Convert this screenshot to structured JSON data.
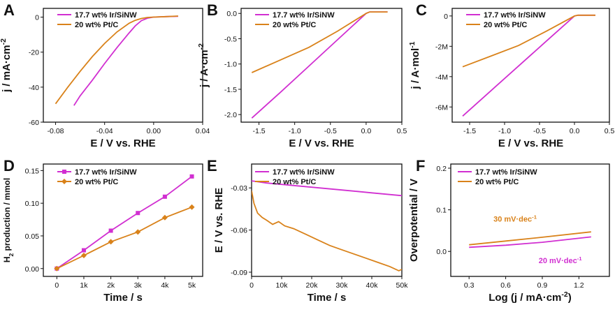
{
  "colors": {
    "ir": "#d12fd1",
    "pt": "#d9821a",
    "axis": "#111111"
  },
  "chart_data": [
    {
      "panel": "A",
      "type": "line",
      "xlabel": "E / V vs. RHE",
      "ylabel": "j / mA·cm⁻²",
      "xlim": [
        -0.09,
        0.04
      ],
      "ylim": [
        -60,
        5
      ],
      "xticks": [
        -0.08,
        -0.04,
        0.0,
        0.04
      ],
      "xticklabels": [
        "-0.08",
        "-0.04",
        "0.00",
        "0.04"
      ],
      "yticks": [
        0,
        -20,
        -40,
        -60
      ],
      "yticklabels": [
        "0",
        "-20",
        "-40",
        "-60"
      ],
      "legend": {
        "placement": "top-left",
        "entries": [
          "17.7 wt% Ir/SiNW",
          "20 wt% Pt/C"
        ]
      },
      "series": [
        {
          "name": "17.7 wt% Ir/SiNW",
          "color": "ir",
          "x": [
            -0.065,
            -0.06,
            -0.05,
            -0.04,
            -0.03,
            -0.02,
            -0.015,
            -0.01,
            -0.005,
            0,
            0.01,
            0.02
          ],
          "y": [
            -50.5,
            -45,
            -36,
            -26.5,
            -17.5,
            -9,
            -5,
            -2,
            -0.6,
            0,
            0.3,
            0.5
          ]
        },
        {
          "name": "20 wt% Pt/C",
          "color": "pt",
          "x": [
            -0.08,
            -0.07,
            -0.06,
            -0.05,
            -0.04,
            -0.03,
            -0.02,
            -0.015,
            -0.01,
            -0.005,
            0,
            0.01,
            0.02
          ],
          "y": [
            -49.5,
            -40,
            -31,
            -22.5,
            -15,
            -8.5,
            -3.5,
            -1.8,
            -0.8,
            -0.2,
            0,
            0.3,
            0.6
          ]
        }
      ]
    },
    {
      "panel": "B",
      "type": "line",
      "xlabel": "E / V vs. RHE",
      "ylabel": "j / A·cm⁻²",
      "xlim": [
        -1.75,
        0.5
      ],
      "ylim": [
        -2.15,
        0.1
      ],
      "xticks": [
        -1.5,
        -1.0,
        -0.5,
        0.0,
        0.5
      ],
      "xticklabels": [
        "-1.5",
        "-1.0",
        "-0.5",
        "0.0",
        "0.5"
      ],
      "yticks": [
        0.0,
        -0.5,
        -1.0,
        -1.5,
        -2.0
      ],
      "yticklabels": [
        "0.0",
        "-0.5",
        "-1.0",
        "-1.5",
        "-2.0"
      ],
      "legend": {
        "placement": "top-right",
        "entries": [
          "17.7 wt% Ir/SiNW",
          "20 wt% Pt/C"
        ]
      },
      "series": [
        {
          "name": "17.7 wt% Ir/SiNW",
          "color": "ir",
          "x": [
            -1.6,
            -1.2,
            -0.8,
            -0.4,
            0.0,
            0.05,
            0.3
          ],
          "y": [
            -2.07,
            -1.56,
            -1.04,
            -0.52,
            0.0,
            0.03,
            0.03
          ]
        },
        {
          "name": "20 wt% Pt/C",
          "color": "pt",
          "x": [
            -1.6,
            -1.2,
            -0.8,
            -0.4,
            0.0,
            0.05,
            0.3
          ],
          "y": [
            -1.17,
            -0.92,
            -0.67,
            -0.35,
            0.0,
            0.03,
            0.03
          ]
        }
      ]
    },
    {
      "panel": "C",
      "type": "line",
      "xlabel": "E / V vs. RHE",
      "ylabel": "j / A·mol⁻¹",
      "xlim": [
        -1.75,
        0.5
      ],
      "ylim": [
        -7000000,
        500000
      ],
      "xticks": [
        -1.5,
        -1.0,
        -0.5,
        0.0,
        0.5
      ],
      "xticklabels": [
        "-1.5",
        "-1.0",
        "-0.5",
        "0.0",
        "0.5"
      ],
      "yticks": [
        0,
        -2000000,
        -4000000,
        -6000000
      ],
      "yticklabels": [
        "0",
        "-2M",
        "-4M",
        "-6M"
      ],
      "legend": {
        "placement": "top-right",
        "entries": [
          "17.7 wt% Ir/SiNW",
          "20 wt% Pt/C"
        ]
      },
      "series": [
        {
          "name": "17.7 wt% Ir/SiNW",
          "color": "ir",
          "x": [
            -1.6,
            -1.2,
            -0.8,
            -0.4,
            0.0,
            0.05,
            0.3
          ],
          "y": [
            -6600000,
            -4950000,
            -3300000,
            -1650000,
            0,
            50000,
            50000
          ]
        },
        {
          "name": "20 wt% Pt/C",
          "color": "pt",
          "x": [
            -1.6,
            -1.2,
            -0.8,
            -0.4,
            0.0,
            0.05,
            0.3
          ],
          "y": [
            -3350000,
            -2650000,
            -1950000,
            -1000000,
            0,
            50000,
            50000
          ]
        }
      ]
    },
    {
      "panel": "D",
      "type": "line",
      "xlabel": "Time / s",
      "ylabel": "H₂ production / mmol",
      "xlim": [
        -500,
        5400
      ],
      "ylim": [
        -0.012,
        0.16
      ],
      "xticks": [
        0,
        1000,
        2000,
        3000,
        4000,
        5000
      ],
      "xticklabels": [
        "0",
        "1k",
        "2k",
        "3k",
        "4k",
        "5k"
      ],
      "yticks": [
        0.0,
        0.05,
        0.1,
        0.15
      ],
      "yticklabels": [
        "0.00",
        "0.05",
        "0.10",
        "0.15"
      ],
      "legend": {
        "placement": "top-left",
        "entries": [
          "17.7 wt% Ir/SiNW",
          "20 wt% Pt/C"
        ]
      },
      "series": [
        {
          "name": "17.7 wt% Ir/SiNW",
          "color": "ir",
          "marker": "square",
          "x": [
            0,
            1000,
            2000,
            3000,
            4000,
            5000
          ],
          "y": [
            0.0,
            0.028,
            0.058,
            0.085,
            0.11,
            0.141
          ]
        },
        {
          "name": "20 wt% Pt/C",
          "color": "pt",
          "marker": "diamond",
          "x": [
            0,
            1000,
            2000,
            3000,
            4000,
            5000
          ],
          "y": [
            0.0,
            0.02,
            0.041,
            0.056,
            0.078,
            0.094
          ]
        }
      ]
    },
    {
      "panel": "E",
      "type": "line",
      "xlabel": "Time / s",
      "ylabel": "E / V vs. RHE",
      "xlim": [
        0,
        50000
      ],
      "ylim": [
        -0.093,
        -0.013
      ],
      "xticks": [
        0,
        10000,
        20000,
        30000,
        40000,
        50000
      ],
      "xticklabels": [
        "0",
        "10k",
        "20k",
        "30k",
        "40k",
        "50k"
      ],
      "yticks": [
        -0.03,
        -0.06,
        -0.09
      ],
      "yticklabels": [
        "-0.03",
        "-0.06",
        "-0.09"
      ],
      "legend": {
        "placement": "top-right",
        "entries": [
          "17.7 wt% Ir/SiNW",
          "20 wt% Pt/C"
        ]
      },
      "series": [
        {
          "name": "17.7 wt% Ir/SiNW",
          "color": "ir",
          "x": [
            0,
            5000,
            10000,
            15000,
            20000,
            25000,
            30000,
            35000,
            40000,
            45000,
            50000
          ],
          "y": [
            -0.025,
            -0.0265,
            -0.0275,
            -0.0285,
            -0.0295,
            -0.0305,
            -0.0315,
            -0.0325,
            -0.0335,
            -0.0345,
            -0.0355
          ]
        },
        {
          "name": "20 wt% Pt/C",
          "color": "pt",
          "x": [
            0,
            800,
            2000,
            3500,
            5000,
            7000,
            9000,
            11000,
            14000,
            18000,
            22000,
            26000,
            30000,
            34000,
            38000,
            42000,
            46000,
            49000,
            50000
          ],
          "y": [
            -0.032,
            -0.041,
            -0.048,
            -0.051,
            -0.053,
            -0.056,
            -0.054,
            -0.057,
            -0.059,
            -0.063,
            -0.067,
            -0.071,
            -0.074,
            -0.077,
            -0.08,
            -0.083,
            -0.086,
            -0.089,
            -0.088
          ]
        }
      ]
    },
    {
      "panel": "F",
      "type": "line",
      "xlabel": "Log (j / mA·cm⁻²)",
      "ylabel": "Overpotential / V",
      "xlim": [
        0.15,
        1.45
      ],
      "ylim": [
        -0.06,
        0.21
      ],
      "xticks": [
        0.3,
        0.6,
        0.9,
        1.2
      ],
      "xticklabels": [
        "0.3",
        "0.6",
        "0.9",
        "1.2"
      ],
      "yticks": [
        0.0,
        0.1,
        0.2
      ],
      "yticklabels": [
        "0.0",
        "0.1",
        "0.2"
      ],
      "legend": {
        "placement": "top-right",
        "entries": [
          "17.7 wt% Ir/SiNW",
          "20 wt% Pt/C"
        ]
      },
      "annotations": [
        {
          "text": "30 mV·dec⁻¹",
          "color": "pt",
          "x": 0.5,
          "y": 0.072
        },
        {
          "text": "20 mV·dec⁻¹",
          "color": "ir",
          "x": 0.87,
          "y": -0.028
        }
      ],
      "series": [
        {
          "name": "17.7 wt% Ir/SiNW",
          "color": "ir",
          "x": [
            0.3,
            0.6,
            0.9,
            1.3
          ],
          "y": [
            0.01,
            0.015,
            0.022,
            0.035
          ]
        },
        {
          "name": "20 wt% Pt/C",
          "color": "pt",
          "x": [
            0.3,
            0.6,
            0.9,
            1.3
          ],
          "y": [
            0.016,
            0.025,
            0.034,
            0.047
          ]
        }
      ]
    }
  ]
}
